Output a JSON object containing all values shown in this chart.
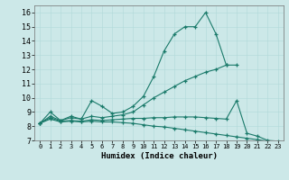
{
  "xlabel": "Humidex (Indice chaleur)",
  "bg_color": "#cce8e8",
  "line_color": "#1a7a6a",
  "xlim": [
    -0.5,
    23.5
  ],
  "ylim": [
    7,
    16.5
  ],
  "yticks": [
    7,
    8,
    9,
    10,
    11,
    12,
    13,
    14,
    15,
    16
  ],
  "xticks": [
    0,
    1,
    2,
    3,
    4,
    5,
    6,
    7,
    8,
    9,
    10,
    11,
    12,
    13,
    14,
    15,
    16,
    17,
    18,
    19,
    20,
    21,
    22,
    23
  ],
  "series": [
    {
      "x": [
        0,
        1,
        2,
        3,
        4,
        5,
        6,
        7,
        8,
        9,
        10,
        11,
        12,
        13,
        14,
        15,
        16,
        17,
        18
      ],
      "y": [
        8.2,
        9.0,
        8.4,
        8.7,
        8.5,
        9.8,
        9.4,
        8.9,
        9.0,
        9.4,
        10.1,
        11.5,
        13.3,
        14.5,
        15.0,
        15.0,
        16.0,
        14.5,
        12.3
      ]
    },
    {
      "x": [
        0,
        1,
        2,
        3,
        4,
        5,
        6,
        7,
        8,
        9,
        10,
        11,
        12,
        13,
        14,
        15,
        16,
        17,
        18,
        19
      ],
      "y": [
        8.2,
        8.7,
        8.4,
        8.6,
        8.5,
        8.7,
        8.6,
        8.7,
        8.8,
        9.0,
        9.5,
        10.0,
        10.4,
        10.8,
        11.2,
        11.5,
        11.8,
        12.0,
        12.3,
        12.3
      ]
    },
    {
      "x": [
        0,
        1,
        2,
        3,
        4,
        5,
        6,
        7,
        8,
        9,
        10,
        11,
        12,
        13,
        14,
        15,
        16,
        17,
        18,
        19,
        20,
        21,
        22,
        23
      ],
      "y": [
        8.2,
        8.6,
        8.35,
        8.4,
        8.35,
        8.45,
        8.4,
        8.45,
        8.5,
        8.55,
        8.55,
        8.6,
        8.6,
        8.65,
        8.65,
        8.65,
        8.6,
        8.55,
        8.5,
        9.8,
        7.5,
        7.3,
        7.0,
        6.95
      ]
    },
    {
      "x": [
        0,
        1,
        2,
        3,
        4,
        5,
        6,
        7,
        8,
        9,
        10,
        11,
        12,
        13,
        14,
        15,
        16,
        17,
        18,
        19,
        20,
        21,
        22,
        23
      ],
      "y": [
        8.2,
        8.5,
        8.3,
        8.35,
        8.3,
        8.35,
        8.3,
        8.3,
        8.25,
        8.2,
        8.1,
        8.0,
        7.95,
        7.85,
        7.75,
        7.65,
        7.55,
        7.45,
        7.35,
        7.25,
        7.15,
        7.05,
        6.95,
        6.9
      ]
    }
  ]
}
